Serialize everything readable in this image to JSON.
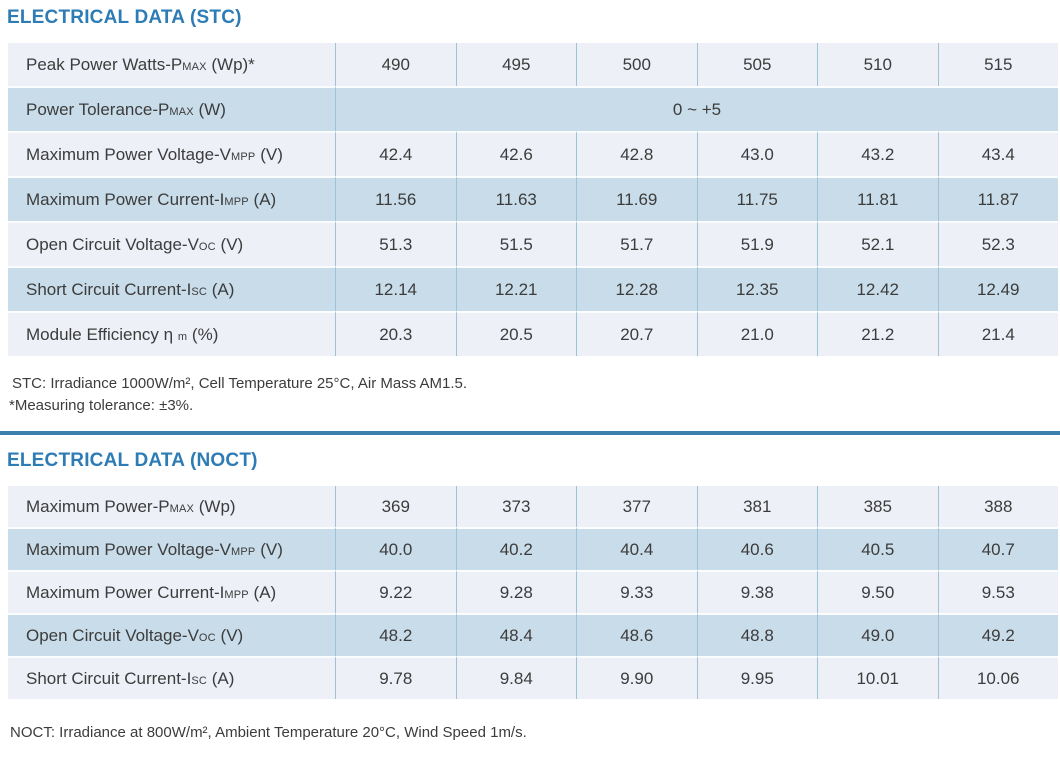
{
  "colors": {
    "title_blue": "#2e7cb5",
    "divider_blue": "#3b7fad",
    "stripe_light": "#edf0f7",
    "stripe_dark": "#c9dce9",
    "column_border": "#9fc2d6",
    "text": "#3c3c3c"
  },
  "stc": {
    "title": "ELECTRICAL DATA (STC)",
    "rows": [
      {
        "label": {
          "pre": "Peak Power Watts-P",
          "sub": "MAX",
          "post": " (Wp)*"
        },
        "values": [
          "490",
          "495",
          "500",
          "505",
          "510",
          "515"
        ]
      },
      {
        "label": {
          "pre": "Power Tolerance-P",
          "sub": "MAX",
          "post": " (W)"
        },
        "span_value": "0 ~ +5"
      },
      {
        "label": {
          "pre": "Maximum Power Voltage-V",
          "sub": "MPP",
          "post": " (V)"
        },
        "values": [
          "42.4",
          "42.6",
          "42.8",
          "43.0",
          "43.2",
          "43.4"
        ]
      },
      {
        "label": {
          "pre": "Maximum Power Current-I",
          "sub": "MPP",
          "post": " (A)"
        },
        "values": [
          "11.56",
          "11.63",
          "11.69",
          "11.75",
          "11.81",
          "11.87"
        ]
      },
      {
        "label": {
          "pre": "Open Circuit Voltage-V",
          "sub": "OC",
          "post": " (V)"
        },
        "values": [
          "51.3",
          "51.5",
          "51.7",
          "51.9",
          "52.1",
          "52.3"
        ]
      },
      {
        "label": {
          "pre": "Short Circuit Current-I",
          "sub": "SC",
          "post": " (A)"
        },
        "values": [
          "12.14",
          "12.21",
          "12.28",
          "12.35",
          "12.42",
          "12.49"
        ]
      },
      {
        "label": {
          "pre": "Module Efficiency η ",
          "sub": "m",
          "post": " (%)"
        },
        "values": [
          "20.3",
          "20.5",
          "20.7",
          "21.0",
          "21.2",
          "21.4"
        ]
      }
    ],
    "footnotes": [
      "STC: Irradiance 1000W/m², Cell Temperature 25°C, Air Mass AM1.5.",
      "*Measuring tolerance: ±3%."
    ]
  },
  "noct": {
    "title": "ELECTRICAL DATA (NOCT)",
    "rows": [
      {
        "label": {
          "pre": "Maximum Power-P",
          "sub": "MAX",
          "post": " (Wp)"
        },
        "values": [
          "369",
          "373",
          "377",
          "381",
          "385",
          "388"
        ]
      },
      {
        "label": {
          "pre": "Maximum Power Voltage-V",
          "sub": "MPP",
          "post": " (V)"
        },
        "values": [
          "40.0",
          "40.2",
          "40.4",
          "40.6",
          "40.5",
          "40.7"
        ]
      },
      {
        "label": {
          "pre": "Maximum Power Current-I",
          "sub": "MPP",
          "post": " (A)"
        },
        "values": [
          "9.22",
          "9.28",
          "9.33",
          "9.38",
          "9.50",
          "9.53"
        ]
      },
      {
        "label": {
          "pre": "Open Circuit Voltage-V",
          "sub": "OC",
          "post": " (V)"
        },
        "values": [
          "48.2",
          "48.4",
          "48.6",
          "48.8",
          "49.0",
          "49.2"
        ]
      },
      {
        "label": {
          "pre": "Short Circuit Current-I",
          "sub": "SC",
          "post": " (A)"
        },
        "values": [
          "9.78",
          "9.84",
          "9.90",
          "9.95",
          "10.01",
          "10.06"
        ]
      }
    ],
    "footnote": "NOCT: Irradiance at 800W/m², Ambient Temperature 20°C, Wind Speed 1m/s."
  }
}
